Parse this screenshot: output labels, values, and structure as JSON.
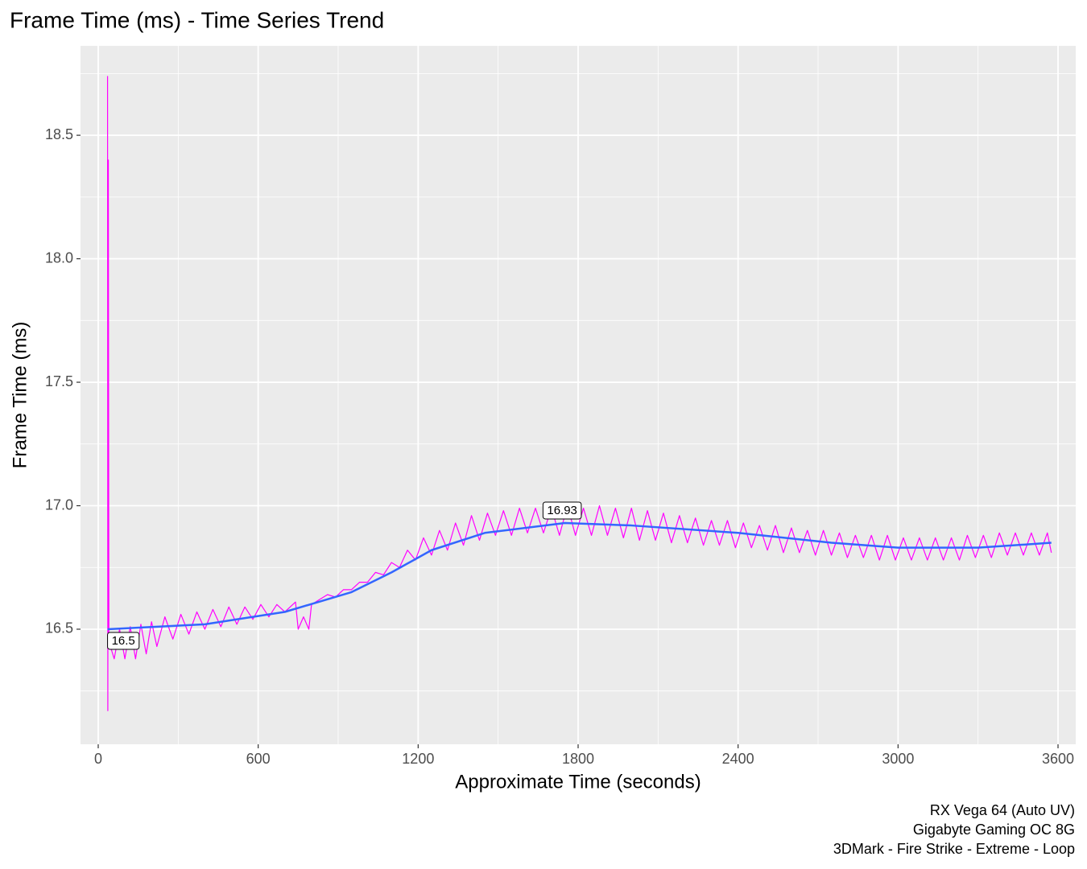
{
  "chart_data": {
    "type": "line",
    "title": "Frame Time (ms) - Time Series Trend",
    "x_label": "Approximate Time (seconds)",
    "y_label": "Frame Time (ms)",
    "caption": [
      "RX Vega 64 (Auto UV)",
      "Gigabyte Gaming OC 8G",
      "3DMark - Fire Strike - Extreme - Loop"
    ],
    "xlim": [
      -66.4,
      3666.4
    ],
    "ylim": [
      16.034,
      18.862
    ],
    "xticks": [
      0,
      600,
      1200,
      1800,
      2400,
      3000,
      3600
    ],
    "minor_xticks": [
      300,
      900,
      1500,
      2100,
      2700,
      3300
    ],
    "yticks": [
      16.5,
      {
        "value": 17,
        "label": "17.0"
      },
      17.5,
      {
        "value": 18,
        "label": "18.0"
      },
      18.5
    ],
    "minor_yticks": [
      16.25,
      16.75,
      17.25,
      17.75,
      18.25,
      18.75
    ],
    "grid": true,
    "series": [
      {
        "color": "#ff00ff",
        "width": 1.2,
        "x": [
          35,
          36,
          38,
          40,
          60,
          80,
          100,
          120,
          140,
          160,
          180,
          200,
          220,
          250,
          280,
          310,
          340,
          370,
          400,
          430,
          460,
          490,
          520,
          550,
          580,
          610,
          640,
          670,
          700,
          740,
          750,
          770,
          790,
          800,
          830,
          860,
          890,
          920,
          950,
          980,
          1010,
          1040,
          1070,
          1100,
          1130,
          1160,
          1190,
          1220,
          1250,
          1280,
          1310,
          1340,
          1370,
          1400,
          1430,
          1460,
          1490,
          1520,
          1550,
          1580,
          1610,
          1640,
          1670,
          1700,
          1730,
          1760,
          1790,
          1820,
          1850,
          1880,
          1910,
          1940,
          1970,
          2000,
          2030,
          2060,
          2090,
          2120,
          2150,
          2180,
          2210,
          2240,
          2270,
          2300,
          2330,
          2360,
          2390,
          2420,
          2450,
          2480,
          2510,
          2540,
          2570,
          2600,
          2630,
          2660,
          2690,
          2720,
          2750,
          2780,
          2810,
          2840,
          2870,
          2900,
          2930,
          2960,
          2990,
          3020,
          3050,
          3080,
          3110,
          3140,
          3170,
          3200,
          3230,
          3260,
          3290,
          3320,
          3350,
          3380,
          3410,
          3440,
          3470,
          3500,
          3530,
          3560,
          3575
        ],
        "values": [
          18.74,
          16.17,
          18.4,
          16.45,
          16.38,
          16.5,
          16.38,
          16.51,
          16.38,
          16.52,
          16.4,
          16.53,
          16.43,
          16.55,
          16.46,
          16.56,
          16.48,
          16.57,
          16.5,
          16.58,
          16.51,
          16.59,
          16.52,
          16.59,
          16.54,
          16.6,
          16.55,
          16.6,
          16.57,
          16.61,
          16.5,
          16.55,
          16.5,
          16.6,
          16.62,
          16.64,
          16.63,
          16.66,
          16.66,
          16.69,
          16.69,
          16.73,
          16.72,
          16.77,
          16.75,
          16.82,
          16.78,
          16.87,
          16.8,
          16.9,
          16.82,
          16.93,
          16.84,
          16.96,
          16.86,
          16.97,
          16.88,
          16.98,
          16.88,
          16.99,
          16.89,
          16.99,
          16.89,
          16.99,
          16.88,
          17.0,
          16.88,
          16.99,
          16.88,
          17.0,
          16.88,
          16.99,
          16.87,
          16.99,
          16.86,
          16.98,
          16.86,
          16.97,
          16.85,
          16.96,
          16.85,
          16.95,
          16.84,
          16.94,
          16.84,
          16.94,
          16.83,
          16.93,
          16.83,
          16.92,
          16.82,
          16.92,
          16.81,
          16.91,
          16.81,
          16.9,
          16.8,
          16.9,
          16.8,
          16.89,
          16.79,
          16.88,
          16.79,
          16.88,
          16.78,
          16.88,
          16.78,
          16.87,
          16.78,
          16.87,
          16.78,
          16.87,
          16.78,
          16.87,
          16.78,
          16.88,
          16.79,
          16.88,
          16.79,
          16.89,
          16.8,
          16.89,
          16.8,
          16.89,
          16.8,
          16.89,
          16.81
        ]
      },
      {
        "color": "#3366ff",
        "width": 2.5,
        "x": [
          35,
          400,
          700,
          950,
          1100,
          1250,
          1450,
          1750,
          2000,
          2400,
          2750,
          3000,
          3300,
          3575
        ],
        "values": [
          16.5,
          16.52,
          16.57,
          16.65,
          16.73,
          16.82,
          16.89,
          16.93,
          16.92,
          16.89,
          16.85,
          16.83,
          16.83,
          16.85
        ]
      }
    ],
    "annotations": [
      {
        "x": 35,
        "y": 16.5,
        "label": "16.5",
        "position": "below"
      },
      {
        "x": 1740,
        "y": 16.93,
        "label": "16.93",
        "position": "above"
      }
    ]
  }
}
